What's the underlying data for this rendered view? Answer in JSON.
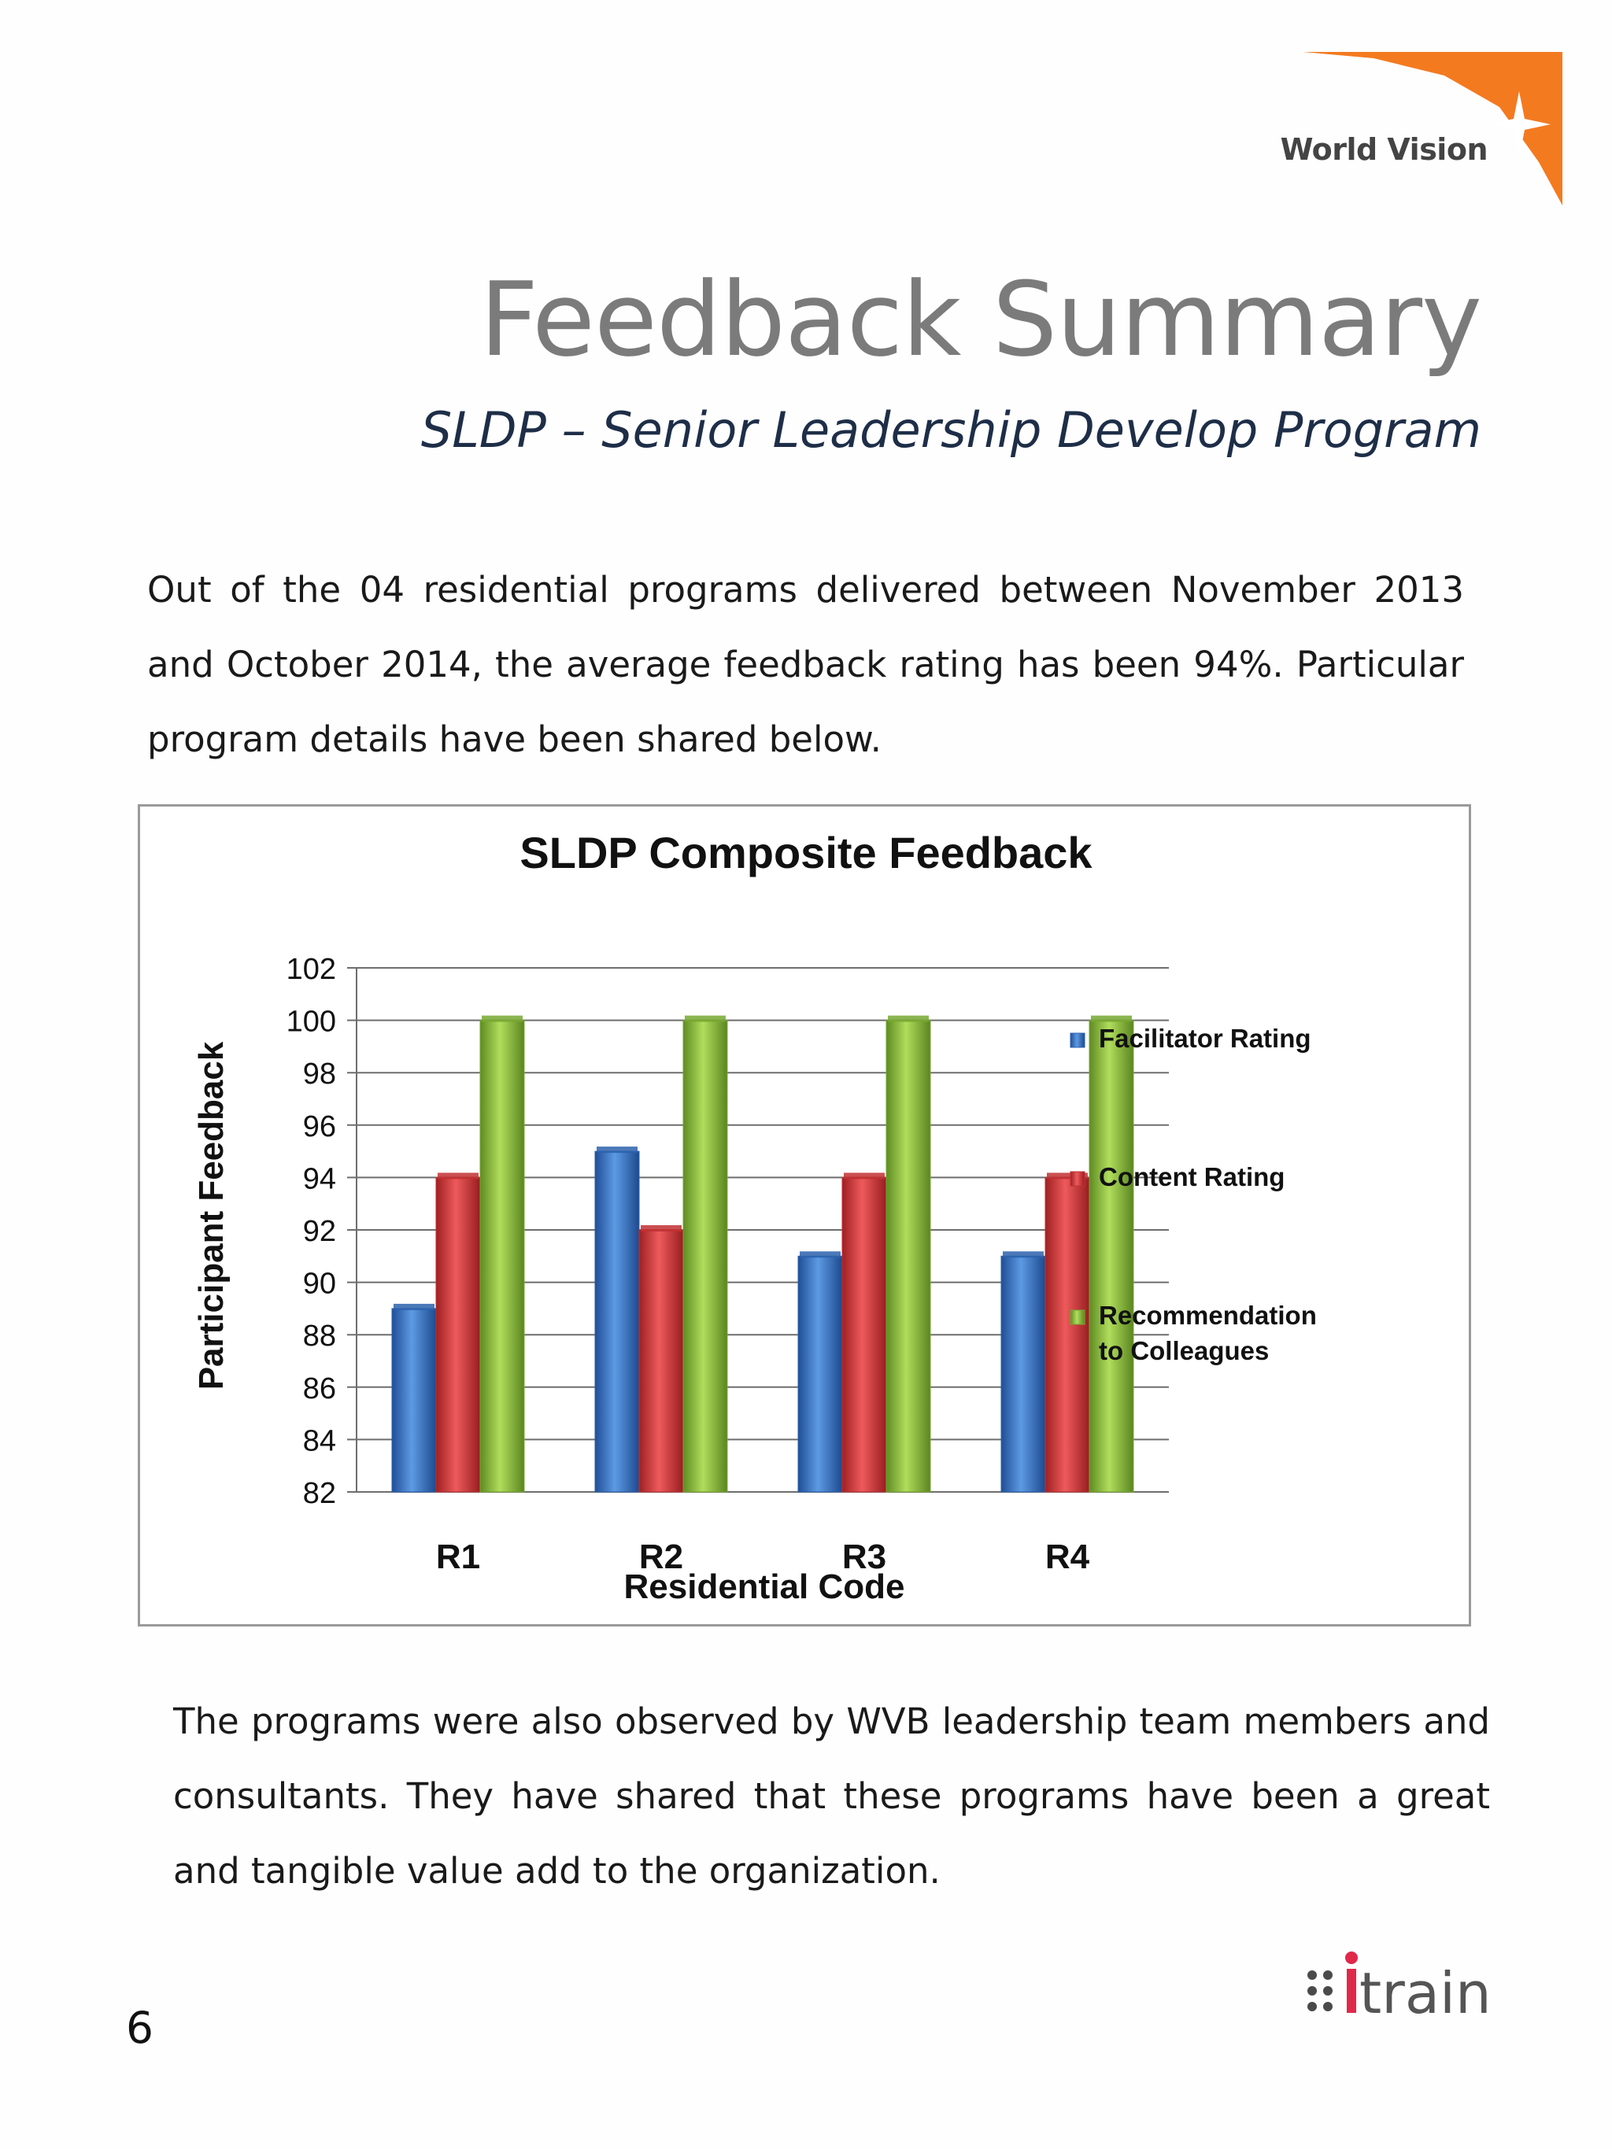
{
  "header": {
    "brand_logo": "World Vision",
    "title": "Feedback Summary",
    "subtitle": "SLDP – Senior Leadership Develop Program"
  },
  "intro_paragraph": "Out of the 04 residential programs delivered between November 2013 and October 2014, the average feedback rating has been 94%. Particular program details have been shared below.",
  "outro_paragraph": "The programs were also observed by WVB leadership team members and consultants. They have shared that these programs have been a great and tangible value add to the organization.",
  "footer": {
    "page_number": "6",
    "partner_logo": "itrain"
  },
  "colors": {
    "brand_orange": "#f47a20",
    "title_gray": "#7b7b7b",
    "subtitle_navy": "#1e2e48",
    "itrain_red": "#e0284a"
  },
  "chart_data": {
    "type": "bar",
    "title": "SLDP Composite Feedback",
    "xlabel": "Residential Code",
    "ylabel": "Participant Feedback",
    "categories": [
      "R1",
      "R2",
      "R3",
      "R4"
    ],
    "ylim": [
      82,
      102
    ],
    "yticks": [
      "82",
      "84",
      "86",
      "88",
      "90",
      "92",
      "94",
      "96",
      "98",
      "100",
      "102"
    ],
    "grid": true,
    "legend_position": "right",
    "series": [
      {
        "name": "Facilitator  Rating",
        "values": [
          89,
          95,
          91,
          91
        ],
        "color": "#3a78c9"
      },
      {
        "name": "Content Rating",
        "values": [
          94,
          92,
          94,
          94
        ],
        "color": "#d8393c"
      },
      {
        "name": "Recommendation to Colleagues",
        "values": [
          100,
          100,
          100,
          100
        ],
        "color": "#8cc13f"
      }
    ]
  }
}
